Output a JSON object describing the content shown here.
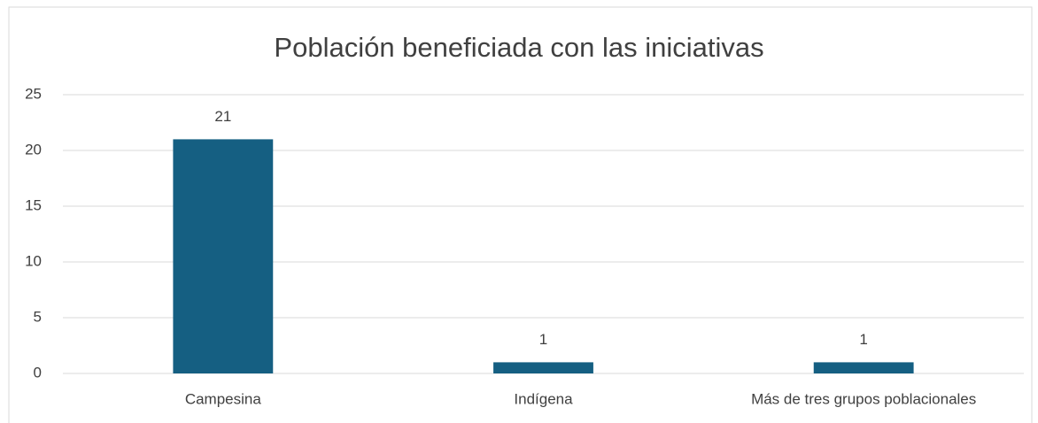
{
  "chart_data": {
    "type": "bar",
    "title": "Población beneficiada con las iniciativas",
    "categories": [
      "Campesina",
      "Indígena",
      "Más de tres grupos poblacionales"
    ],
    "values": [
      21,
      1,
      1
    ],
    "color": "#155f82",
    "ylim": [
      0,
      25
    ],
    "yticks": [
      0,
      5,
      10,
      15,
      20,
      25
    ],
    "grid": true
  }
}
